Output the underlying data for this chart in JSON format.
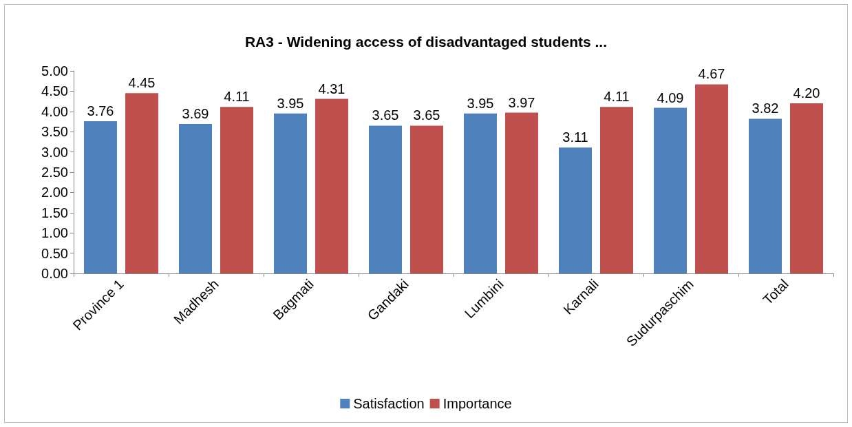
{
  "chart_data": {
    "type": "bar",
    "title": "RA3 - Widening access of disadvantaged students ...",
    "categories": [
      "Province 1",
      "Madhesh",
      "Bagmati",
      "Gandaki",
      "Lumbini",
      "Karnali",
      "Sudurpaschim",
      "Total"
    ],
    "series": [
      {
        "name": "Satisfaction",
        "color": "#4f81bd",
        "values": [
          3.76,
          3.69,
          3.95,
          3.65,
          3.95,
          3.11,
          4.09,
          3.82
        ],
        "value_labels": [
          "3.76",
          "3.69",
          "3.95",
          "3.65",
          "3.95",
          "3.11",
          "4.09",
          "3.82"
        ]
      },
      {
        "name": "Importance",
        "color": "#c0504d",
        "values": [
          4.45,
          4.11,
          4.31,
          3.65,
          3.97,
          4.11,
          4.67,
          4.2
        ],
        "value_labels": [
          "4.45",
          "4.11",
          "4.31",
          "3.65",
          "3.97",
          "4.11",
          "4.67",
          "4.20"
        ]
      }
    ],
    "ylim": [
      0,
      5
    ],
    "yticks": [
      {
        "value": 0,
        "label": "0.00"
      },
      {
        "value": 0.5,
        "label": "0.50"
      },
      {
        "value": 1,
        "label": "1.00"
      },
      {
        "value": 1.5,
        "label": "1.50"
      },
      {
        "value": 2,
        "label": "2.00"
      },
      {
        "value": 2.5,
        "label": "2.50"
      },
      {
        "value": 3,
        "label": "3.00"
      },
      {
        "value": 3.5,
        "label": "3.50"
      },
      {
        "value": 4,
        "label": "4.00"
      },
      {
        "value": 4.5,
        "label": "4.50"
      },
      {
        "value": 5,
        "label": "5.00"
      }
    ],
    "grid": false,
    "legend": "bottom"
  }
}
